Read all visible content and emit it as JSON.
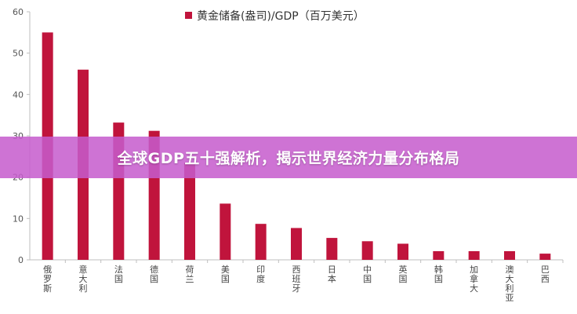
{
  "banner": {
    "text": "全球GDP五十强解析，揭示世界经济力量分布格局"
  },
  "chart_data": {
    "type": "bar",
    "legend": {
      "label": "黄金储备(盎司)/GDP（百万美元）",
      "position": "top-center"
    },
    "categories": [
      "俄罗斯",
      "意大利",
      "法国",
      "德国",
      "荷兰",
      "美国",
      "印度",
      "西班牙",
      "日本",
      "中国",
      "英国",
      "韩国",
      "加拿大",
      "澳大利亚",
      "巴西"
    ],
    "series": [
      {
        "name": "黄金储备(盎司)/GDP（百万美元）",
        "values": [
          55,
          46,
          33.2,
          31.2,
          23.5,
          13.6,
          8.7,
          7.7,
          5.3,
          4.5,
          3.9,
          2.1,
          2.1,
          2.1,
          1.5
        ]
      }
    ],
    "ylim": [
      0,
      60
    ],
    "yticks": [
      0,
      10,
      20,
      30,
      40,
      50,
      60
    ],
    "grid": false,
    "colors": {
      "bar": "#c0143c",
      "axis": "#bfbfbf"
    }
  }
}
